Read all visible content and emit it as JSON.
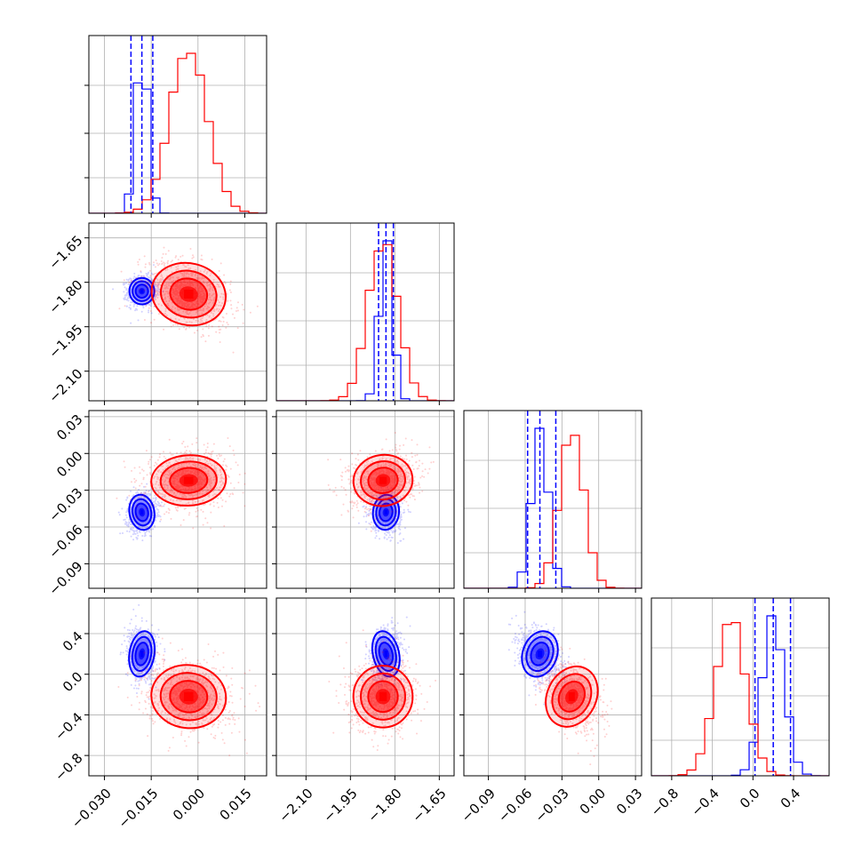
{
  "colors": {
    "series_a": "#0000ff",
    "series_b": "#ff0000"
  },
  "chart_data": {
    "type": "corner",
    "grid": true,
    "n_params": 4,
    "series": [
      {
        "color": "#0000ff",
        "means": [
          -0.018,
          -1.83,
          -0.048,
          0.2
        ],
        "sd": [
          0.002,
          0.022,
          0.007,
          0.11
        ],
        "quantiles": [
          [
            -0.0215,
            -0.018,
            -0.0145
          ],
          [
            -1.855,
            -1.83,
            -1.805
          ],
          [
            -0.058,
            -0.048,
            -0.035
          ],
          [
            0.02,
            0.2,
            0.37
          ]
        ]
      },
      {
        "color": "#ff0000",
        "means": [
          -0.003,
          -1.84,
          -0.022,
          -0.22
        ],
        "sd": [
          0.006,
          0.05,
          0.01,
          0.15
        ]
      }
    ],
    "axes": [
      {
        "range": [
          -0.035,
          0.022
        ],
        "ticks": [
          "−0.030",
          "−0.015",
          "0.000",
          "0.015"
        ],
        "tick_values": [
          -0.03,
          -0.015,
          0.0,
          0.015
        ]
      },
      {
        "range": [
          -2.2,
          -1.6
        ],
        "ticks": [
          "−2.10",
          "−1.95",
          "−1.80",
          "−1.65"
        ],
        "tick_values": [
          -2.1,
          -1.95,
          -1.8,
          -1.65
        ]
      },
      {
        "range": [
          -0.11,
          0.035
        ],
        "ticks": [
          "−0.09",
          "−0.06",
          "−0.03",
          "0.00",
          "0.03"
        ],
        "tick_values": [
          -0.09,
          -0.06,
          -0.03,
          0.0,
          0.03
        ]
      },
      {
        "range": [
          -1.0,
          0.75
        ],
        "ticks": [
          "−0.8",
          "−0.4",
          "0.0",
          "0.4"
        ],
        "tick_values": [
          -0.8,
          -0.4,
          0.0,
          0.4
        ]
      }
    ]
  }
}
